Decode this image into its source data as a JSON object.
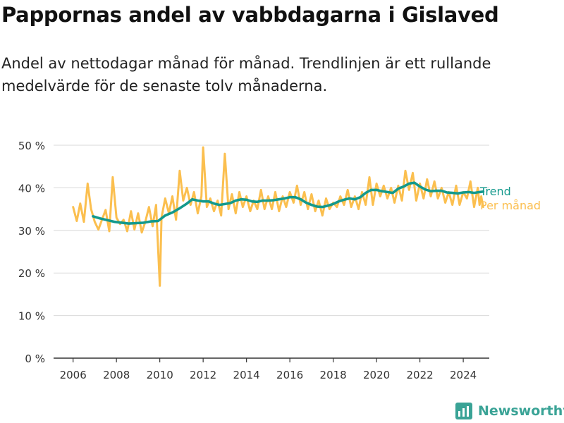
{
  "header": {
    "title": "Pappornas andel av vabbdagarna i Gislaved",
    "subtitle": "Andel av nettodagar månad för månad. Trendlinjen är ett rullande medelvärde för de senaste tolv månaderna."
  },
  "brand": {
    "name": "Newsworthy",
    "icon": "newsworthy-logo-icon",
    "color": "#3aa396"
  },
  "chart_data": {
    "type": "line",
    "xlim": [
      2005.1,
      2025.2
    ],
    "ylim": [
      0,
      50
    ],
    "x_ticks": [
      2006,
      2008,
      2010,
      2012,
      2014,
      2016,
      2018,
      2020,
      2022,
      2024
    ],
    "x_tick_labels": [
      "2006",
      "2008",
      "2010",
      "2012",
      "2014",
      "2016",
      "2018",
      "2020",
      "2022",
      "2024"
    ],
    "y_ticks": [
      0,
      10,
      20,
      30,
      40,
      50
    ],
    "y_tick_labels": [
      "0 %",
      "10 %",
      "20 %",
      "30 %",
      "40 %",
      "50 %"
    ],
    "grid": "horizontal",
    "legend": "right-inline",
    "series": [
      {
        "name": "Per månad",
        "color": "#fbbf4f",
        "points": [
          [
            2006.0,
            35.5
          ],
          [
            2006.17,
            32.2
          ],
          [
            2006.33,
            36.3
          ],
          [
            2006.5,
            32.0
          ],
          [
            2006.67,
            41.0
          ],
          [
            2006.83,
            35.0
          ],
          [
            2007.0,
            32.0
          ],
          [
            2007.17,
            30.2
          ],
          [
            2007.33,
            32.5
          ],
          [
            2007.5,
            34.8
          ],
          [
            2007.67,
            29.8
          ],
          [
            2007.83,
            42.5
          ],
          [
            2008.0,
            33.0
          ],
          [
            2008.17,
            31.5
          ],
          [
            2008.33,
            32.5
          ],
          [
            2008.5,
            29.8
          ],
          [
            2008.67,
            34.5
          ],
          [
            2008.83,
            30.2
          ],
          [
            2009.0,
            34.0
          ],
          [
            2009.17,
            29.5
          ],
          [
            2009.33,
            32.0
          ],
          [
            2009.5,
            35.5
          ],
          [
            2009.67,
            31.0
          ],
          [
            2009.83,
            36.0
          ],
          [
            2010.0,
            17.0
          ],
          [
            2010.08,
            33.0
          ],
          [
            2010.25,
            37.5
          ],
          [
            2010.42,
            34.0
          ],
          [
            2010.58,
            38.0
          ],
          [
            2010.75,
            32.5
          ],
          [
            2010.92,
            44.0
          ],
          [
            2011.08,
            37.0
          ],
          [
            2011.25,
            40.0
          ],
          [
            2011.42,
            36.0
          ],
          [
            2011.58,
            39.0
          ],
          [
            2011.75,
            34.0
          ],
          [
            2011.92,
            38.0
          ],
          [
            2012.0,
            49.5
          ],
          [
            2012.17,
            35.5
          ],
          [
            2012.33,
            37.5
          ],
          [
            2012.5,
            34.5
          ],
          [
            2012.67,
            37.0
          ],
          [
            2012.83,
            33.5
          ],
          [
            2013.0,
            48.0
          ],
          [
            2013.17,
            35.0
          ],
          [
            2013.33,
            38.5
          ],
          [
            2013.5,
            34.0
          ],
          [
            2013.67,
            39.0
          ],
          [
            2013.83,
            35.5
          ],
          [
            2014.0,
            38.0
          ],
          [
            2014.17,
            34.5
          ],
          [
            2014.33,
            37.0
          ],
          [
            2014.5,
            35.0
          ],
          [
            2014.67,
            39.5
          ],
          [
            2014.83,
            35.0
          ],
          [
            2015.0,
            38.0
          ],
          [
            2015.17,
            35.0
          ],
          [
            2015.33,
            39.0
          ],
          [
            2015.5,
            34.5
          ],
          [
            2015.67,
            38.0
          ],
          [
            2015.83,
            35.5
          ],
          [
            2016.0,
            39.0
          ],
          [
            2016.17,
            36.5
          ],
          [
            2016.33,
            40.5
          ],
          [
            2016.5,
            36.0
          ],
          [
            2016.67,
            39.0
          ],
          [
            2016.83,
            35.0
          ],
          [
            2017.0,
            38.5
          ],
          [
            2017.17,
            34.5
          ],
          [
            2017.33,
            37.0
          ],
          [
            2017.5,
            33.5
          ],
          [
            2017.67,
            37.5
          ],
          [
            2017.83,
            35.0
          ],
          [
            2018.0,
            36.5
          ],
          [
            2018.17,
            35.5
          ],
          [
            2018.33,
            38.0
          ],
          [
            2018.5,
            36.0
          ],
          [
            2018.67,
            39.5
          ],
          [
            2018.83,
            35.5
          ],
          [
            2019.0,
            38.0
          ],
          [
            2019.17,
            35.0
          ],
          [
            2019.33,
            39.0
          ],
          [
            2019.5,
            36.0
          ],
          [
            2019.67,
            42.5
          ],
          [
            2019.83,
            36.0
          ],
          [
            2020.0,
            41.0
          ],
          [
            2020.17,
            38.0
          ],
          [
            2020.33,
            40.5
          ],
          [
            2020.5,
            37.5
          ],
          [
            2020.67,
            40.0
          ],
          [
            2020.83,
            36.5
          ],
          [
            2021.0,
            40.5
          ],
          [
            2021.17,
            37.0
          ],
          [
            2021.33,
            44.0
          ],
          [
            2021.5,
            39.5
          ],
          [
            2021.67,
            43.5
          ],
          [
            2021.83,
            37.0
          ],
          [
            2022.0,
            41.0
          ],
          [
            2022.17,
            37.5
          ],
          [
            2022.33,
            42.0
          ],
          [
            2022.5,
            38.0
          ],
          [
            2022.67,
            41.5
          ],
          [
            2022.83,
            37.5
          ],
          [
            2023.0,
            40.0
          ],
          [
            2023.17,
            36.5
          ],
          [
            2023.33,
            39.0
          ],
          [
            2023.5,
            36.0
          ],
          [
            2023.67,
            40.5
          ],
          [
            2023.83,
            36.0
          ],
          [
            2024.0,
            39.0
          ],
          [
            2024.17,
            37.5
          ],
          [
            2024.33,
            41.5
          ],
          [
            2024.5,
            35.5
          ],
          [
            2024.67,
            40.0
          ],
          [
            2024.75,
            36.0
          ],
          [
            2024.83,
            38.0
          ],
          [
            2024.92,
            35.5
          ]
        ]
      },
      {
        "name": "Trend",
        "color": "#13998c",
        "points": [
          [
            2006.92,
            33.3
          ],
          [
            2007.25,
            32.8
          ],
          [
            2007.58,
            32.4
          ],
          [
            2007.92,
            32.0
          ],
          [
            2008.25,
            31.8
          ],
          [
            2008.58,
            31.6
          ],
          [
            2008.92,
            31.7
          ],
          [
            2009.25,
            31.8
          ],
          [
            2009.58,
            32.1
          ],
          [
            2009.92,
            32.2
          ],
          [
            2010.25,
            33.5
          ],
          [
            2010.58,
            34.2
          ],
          [
            2010.92,
            35.2
          ],
          [
            2011.25,
            36.3
          ],
          [
            2011.5,
            37.3
          ],
          [
            2011.75,
            37.0
          ],
          [
            2012.0,
            36.8
          ],
          [
            2012.25,
            36.8
          ],
          [
            2012.5,
            36.3
          ],
          [
            2012.75,
            36.0
          ],
          [
            2013.0,
            36.2
          ],
          [
            2013.25,
            36.4
          ],
          [
            2013.5,
            37.0
          ],
          [
            2013.75,
            37.3
          ],
          [
            2014.0,
            37.2
          ],
          [
            2014.25,
            36.8
          ],
          [
            2014.5,
            36.7
          ],
          [
            2014.75,
            37.0
          ],
          [
            2015.0,
            37.0
          ],
          [
            2015.25,
            37.1
          ],
          [
            2015.5,
            37.3
          ],
          [
            2015.75,
            37.5
          ],
          [
            2016.0,
            37.8
          ],
          [
            2016.25,
            37.8
          ],
          [
            2016.5,
            37.3
          ],
          [
            2016.75,
            36.5
          ],
          [
            2017.0,
            36.0
          ],
          [
            2017.25,
            35.6
          ],
          [
            2017.5,
            35.5
          ],
          [
            2017.75,
            35.8
          ],
          [
            2018.0,
            36.2
          ],
          [
            2018.25,
            36.8
          ],
          [
            2018.5,
            37.2
          ],
          [
            2018.75,
            37.5
          ],
          [
            2019.0,
            37.3
          ],
          [
            2019.25,
            37.8
          ],
          [
            2019.5,
            38.8
          ],
          [
            2019.75,
            39.5
          ],
          [
            2020.0,
            39.5
          ],
          [
            2020.25,
            39.2
          ],
          [
            2020.5,
            39.0
          ],
          [
            2020.75,
            38.8
          ],
          [
            2021.0,
            39.8
          ],
          [
            2021.25,
            40.3
          ],
          [
            2021.5,
            41.0
          ],
          [
            2021.75,
            41.2
          ],
          [
            2022.0,
            40.3
          ],
          [
            2022.25,
            39.6
          ],
          [
            2022.5,
            39.2
          ],
          [
            2022.75,
            39.3
          ],
          [
            2023.0,
            39.3
          ],
          [
            2023.25,
            38.9
          ],
          [
            2023.5,
            38.8
          ],
          [
            2023.75,
            38.7
          ],
          [
            2024.0,
            38.9
          ],
          [
            2024.25,
            39.0
          ],
          [
            2024.5,
            38.8
          ],
          [
            2024.75,
            39.0
          ],
          [
            2024.92,
            39.1
          ]
        ]
      }
    ]
  }
}
